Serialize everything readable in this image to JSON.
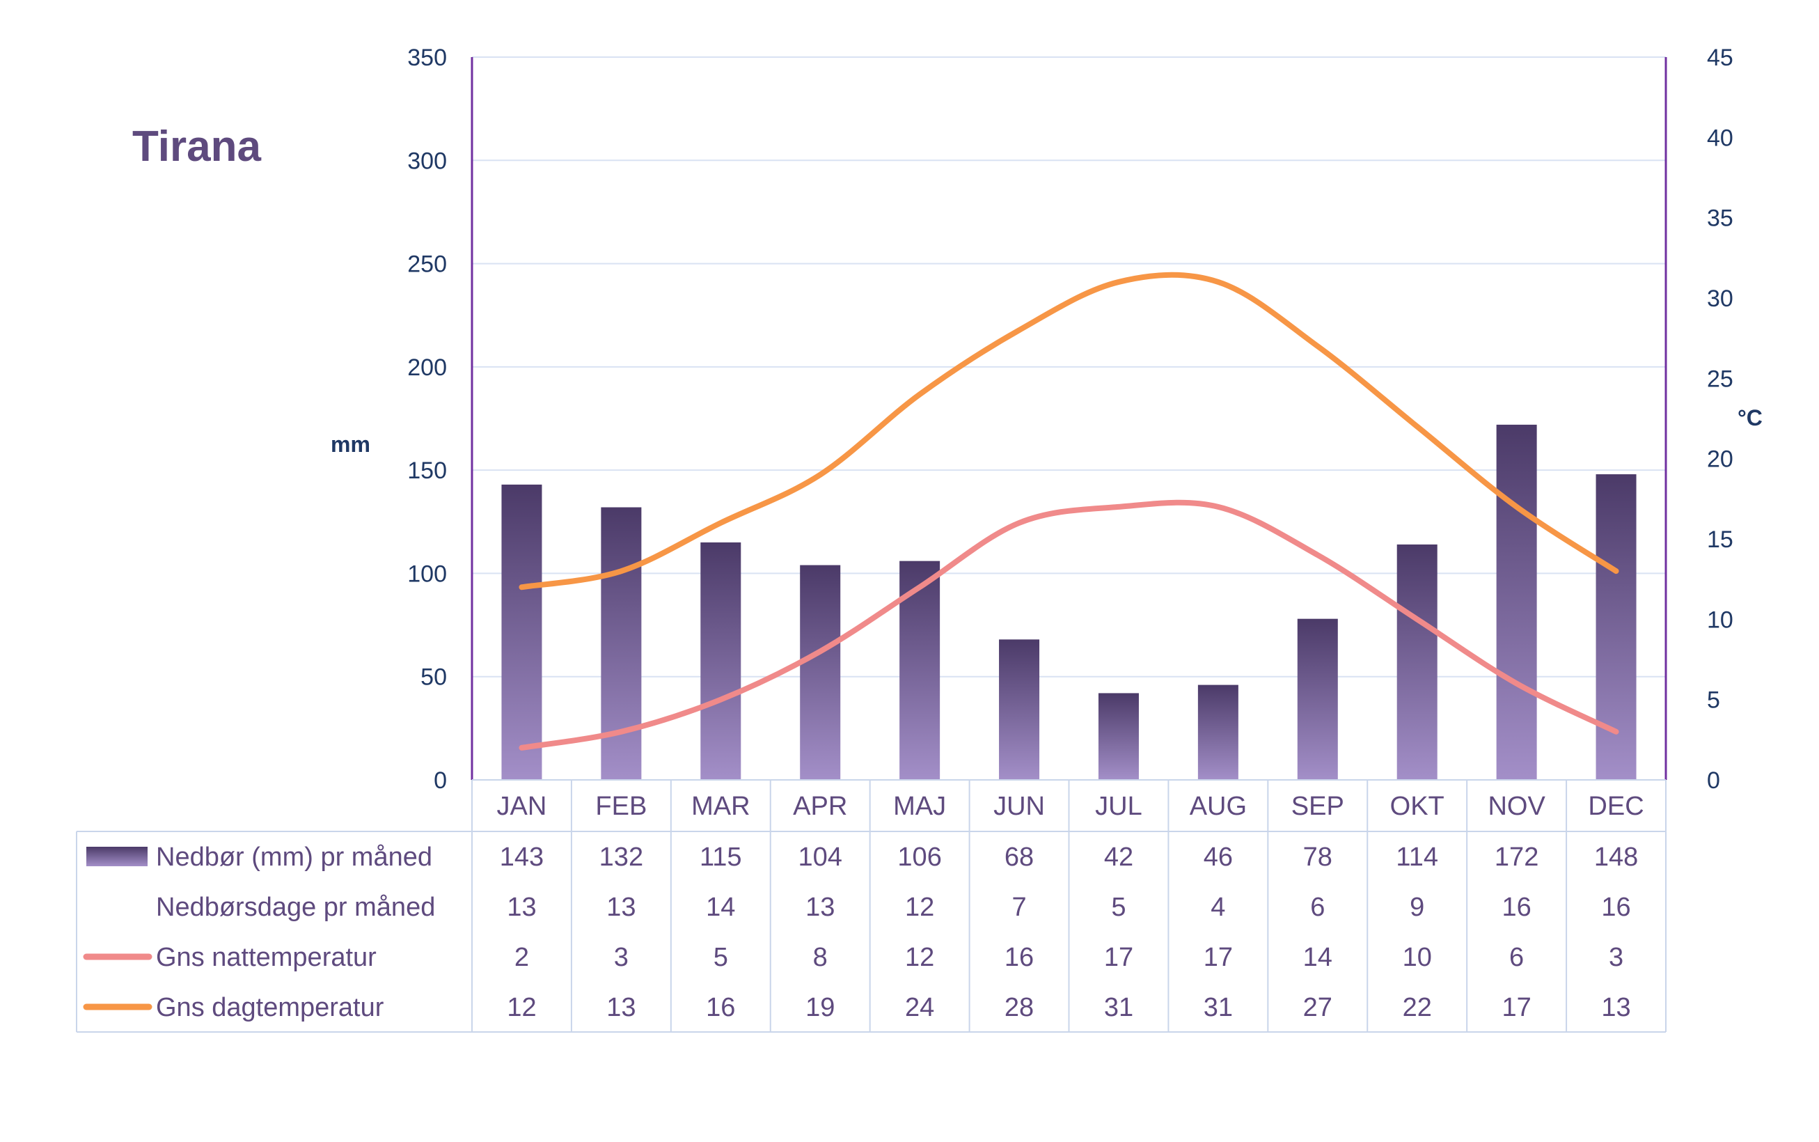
{
  "title": "Tirana",
  "colors": {
    "precip_bar_top": "#4b3a68",
    "precip_bar_bottom": "#a38fc8",
    "night_temp": "#f08a8a",
    "day_temp": "#f79646",
    "grid": "#d9e2f3",
    "axis_line": "#7030a0",
    "axis_text": "#1f3864",
    "table_text": "#5e4a7e",
    "table_border": "#c9d5ea"
  },
  "chart_data": {
    "type": "bar",
    "title": "Tirana",
    "categories": [
      "JAN",
      "FEB",
      "MAR",
      "APR",
      "MAJ",
      "JUN",
      "JUL",
      "AUG",
      "SEP",
      "OKT",
      "NOV",
      "DEC"
    ],
    "y_left": {
      "label": "mm",
      "range": [
        0,
        350
      ],
      "ticks": [
        0,
        50,
        100,
        150,
        200,
        250,
        300,
        350
      ]
    },
    "y_right": {
      "label": "°C",
      "range": [
        0,
        45
      ],
      "ticks": [
        0,
        5,
        10,
        15,
        20,
        25,
        30,
        35,
        40,
        45
      ]
    },
    "grid": true,
    "legend": "data-table-below",
    "series": [
      {
        "name": "Nedbør (mm) pr måned",
        "kind": "bar",
        "axis": "left",
        "values": [
          143,
          132,
          115,
          104,
          106,
          68,
          42,
          46,
          78,
          114,
          172,
          148
        ]
      },
      {
        "name": "Nedbørsdage pr måned",
        "kind": "table",
        "values": [
          13,
          13,
          14,
          13,
          12,
          7,
          5,
          4,
          6,
          9,
          16,
          16
        ]
      },
      {
        "name": "Gns nattemperatur",
        "kind": "line",
        "axis": "right",
        "values": [
          2,
          3,
          5,
          8,
          12,
          16,
          17,
          17,
          14,
          10,
          6,
          3
        ]
      },
      {
        "name": "Gns dagtemperatur",
        "kind": "line",
        "axis": "right",
        "values": [
          12,
          13,
          16,
          19,
          24,
          28,
          31,
          31,
          27,
          22,
          17,
          13
        ]
      }
    ]
  }
}
